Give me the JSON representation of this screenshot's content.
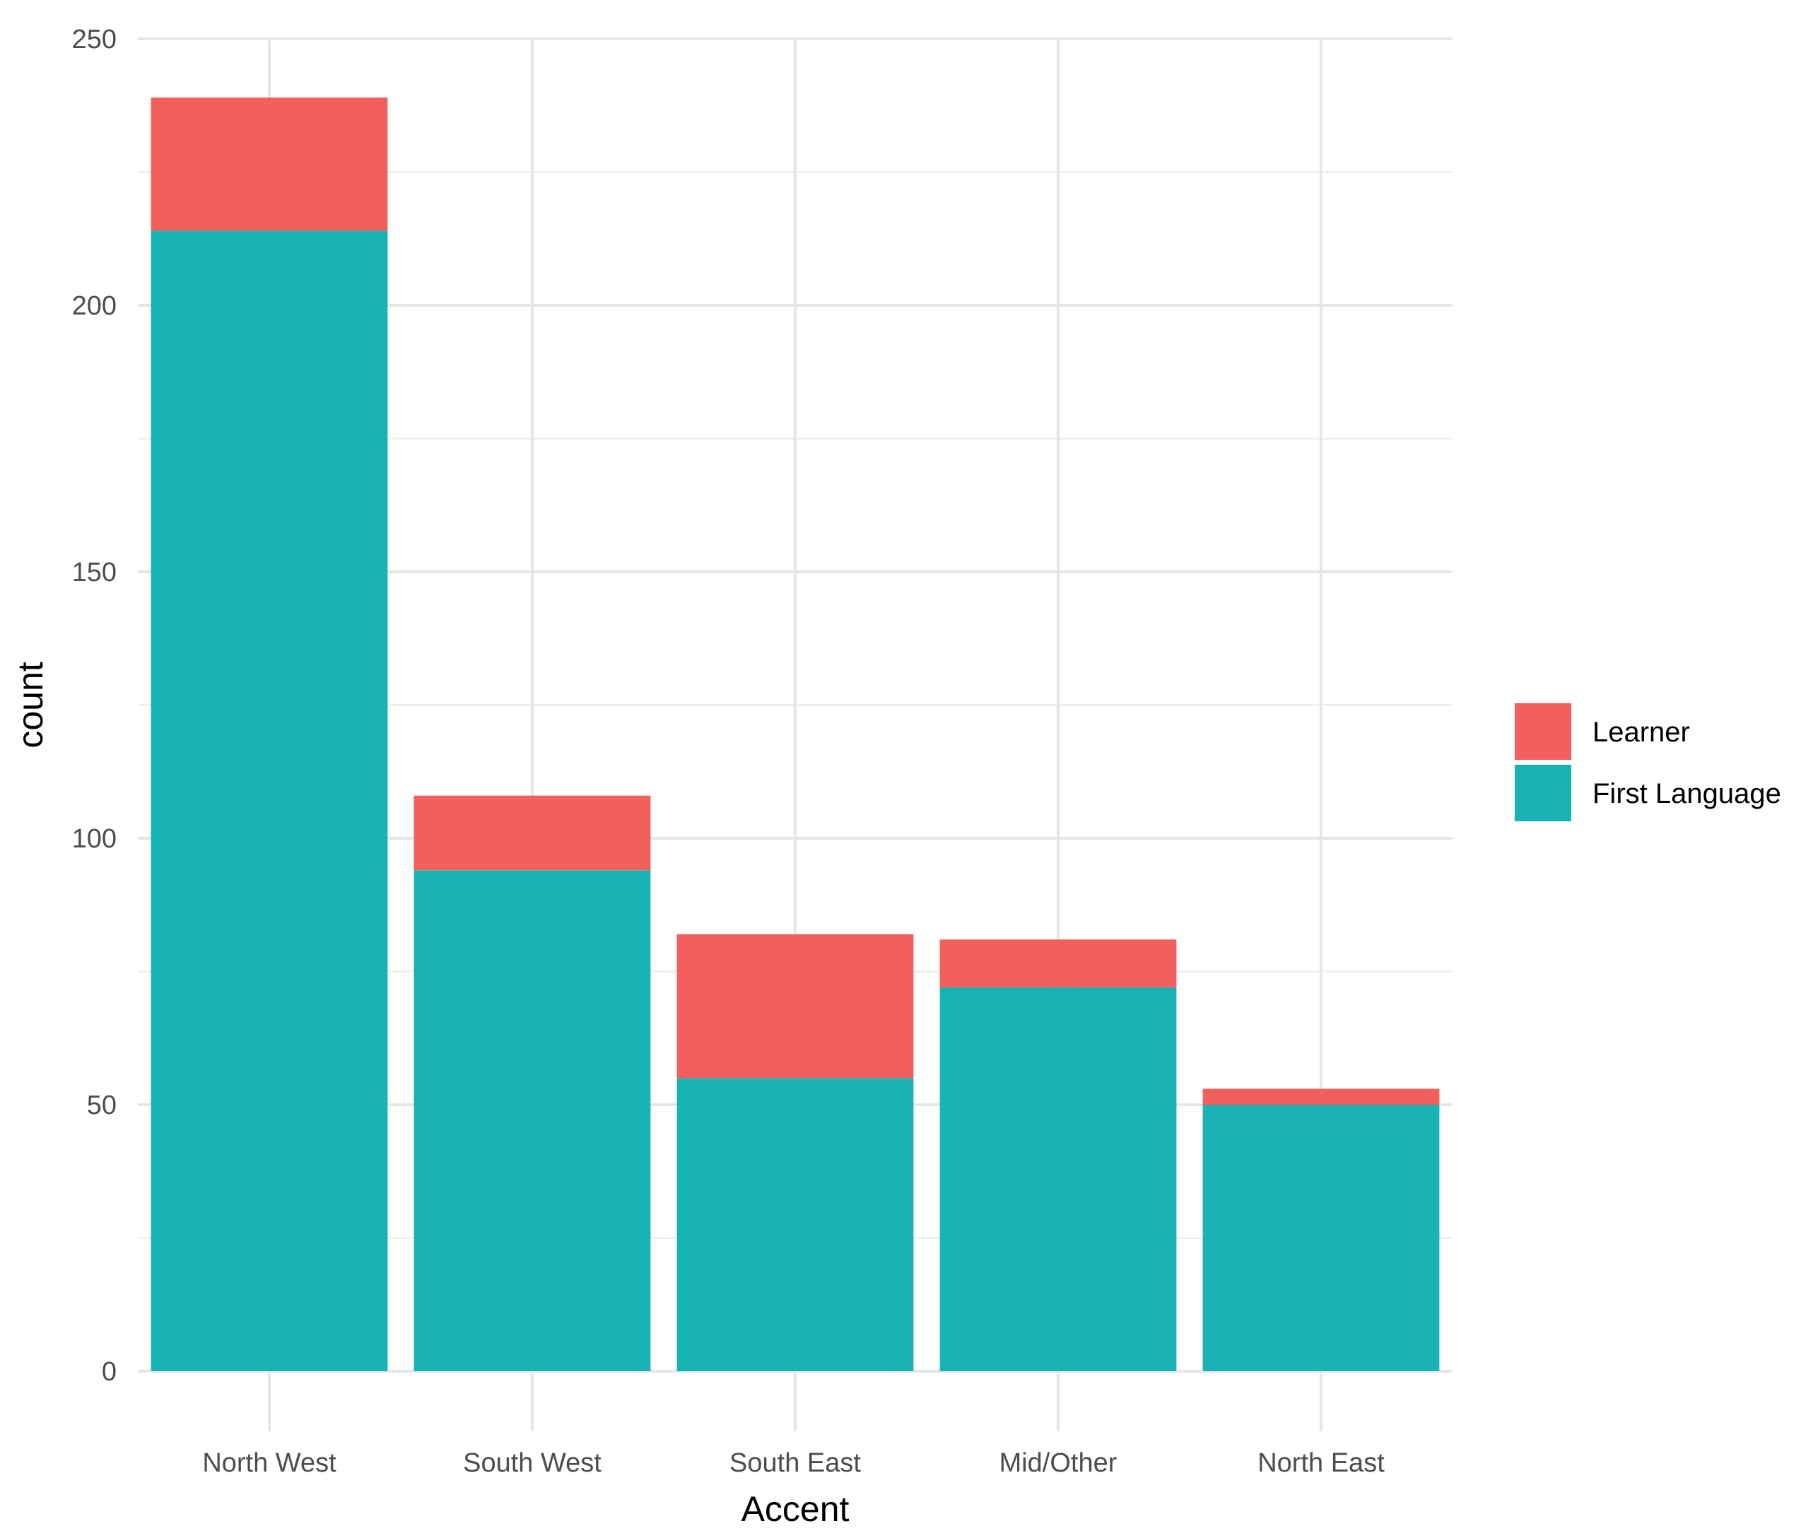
{
  "chart_data": {
    "type": "bar",
    "stacked": true,
    "categories": [
      "North West",
      "South West",
      "South East",
      "Mid/Other",
      "North East"
    ],
    "series": [
      {
        "name": "First Language",
        "values": [
          214,
          94,
          55,
          72,
          50
        ],
        "color": "#19B3B6"
      },
      {
        "name": "Learner",
        "values": [
          25,
          14,
          27,
          9,
          3
        ],
        "color": "#F2605D"
      }
    ],
    "xlabel": "Accent",
    "ylabel": "count",
    "ylim": [
      0,
      250
    ],
    "yticks": [
      "0",
      "50",
      "100",
      "150",
      "200",
      "250"
    ],
    "grid": true,
    "legend_position": "right",
    "legend_order": [
      "Learner",
      "First Language"
    ]
  }
}
